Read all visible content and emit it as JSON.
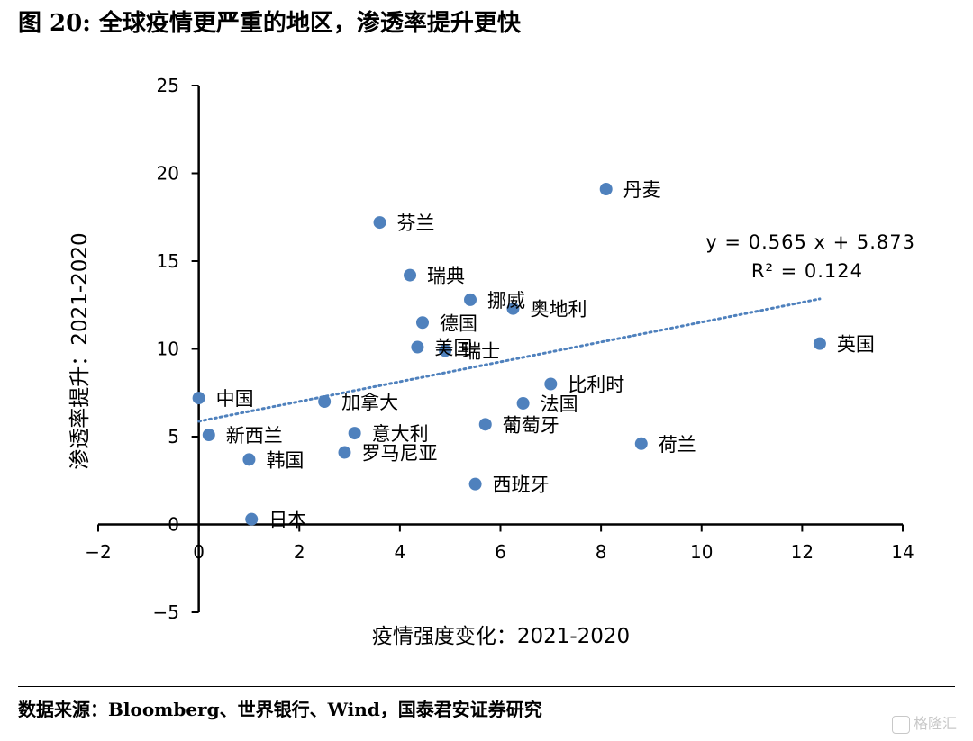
{
  "figure": {
    "title": "图 20:  全球疫情更严重的地区，渗透率提升更快",
    "source": "数据来源：Bloomberg、世界银行、Wind，国泰君安证券研究",
    "watermark": "格隆汇"
  },
  "chart_data": {
    "type": "scatter",
    "xlabel": "疫情强度变化：2021-2020",
    "ylabel": "渗透率提升：2021-2020",
    "xlim": [
      -2,
      14
    ],
    "ylim": [
      -5,
      25
    ],
    "xticks": [
      -2,
      0,
      2,
      4,
      6,
      8,
      10,
      12,
      14
    ],
    "yticks": [
      -5,
      0,
      5,
      10,
      15,
      20,
      25
    ],
    "xtick_labels": [
      "−2",
      "0",
      "2",
      "4",
      "6",
      "8",
      "10",
      "12",
      "14"
    ],
    "ytick_labels": [
      "−5",
      "0",
      "5",
      "10",
      "15",
      "20",
      "25"
    ],
    "grid": false,
    "point_color": "#4f81bd",
    "trendline": {
      "slope": 0.565,
      "intercept": 5.873,
      "x_range": [
        0,
        12.35
      ],
      "style": "dotted",
      "equation": "y = 0.565 x + 5.873",
      "r2": "R² = 0.124"
    },
    "points": [
      {
        "label": "丹麦",
        "x": 8.1,
        "y": 19.1
      },
      {
        "label": "芬兰",
        "x": 3.6,
        "y": 17.2
      },
      {
        "label": "瑞典",
        "x": 4.2,
        "y": 14.2
      },
      {
        "label": "挪威",
        "x": 5.4,
        "y": 12.8
      },
      {
        "label": "奥地利",
        "x": 6.25,
        "y": 12.3
      },
      {
        "label": "德国",
        "x": 4.45,
        "y": 11.5
      },
      {
        "label": "美国",
        "x": 4.35,
        "y": 10.1
      },
      {
        "label": "瑞士",
        "x": 4.9,
        "y": 9.9
      },
      {
        "label": "英国",
        "x": 12.35,
        "y": 10.3
      },
      {
        "label": "中国",
        "x": 0.0,
        "y": 7.2
      },
      {
        "label": "加拿大",
        "x": 2.5,
        "y": 7.0
      },
      {
        "label": "比利时",
        "x": 7.0,
        "y": 8.0
      },
      {
        "label": "法国",
        "x": 6.45,
        "y": 6.9
      },
      {
        "label": "新西兰",
        "x": 0.2,
        "y": 5.1
      },
      {
        "label": "意大利",
        "x": 3.1,
        "y": 5.2
      },
      {
        "label": "葡萄牙",
        "x": 5.7,
        "y": 5.7
      },
      {
        "label": "罗马尼亚",
        "x": 2.9,
        "y": 4.1
      },
      {
        "label": "荷兰",
        "x": 8.8,
        "y": 4.6
      },
      {
        "label": "韩国",
        "x": 1.0,
        "y": 3.7
      },
      {
        "label": "西班牙",
        "x": 5.5,
        "y": 2.3
      },
      {
        "label": "日本",
        "x": 1.05,
        "y": 0.3
      }
    ]
  }
}
